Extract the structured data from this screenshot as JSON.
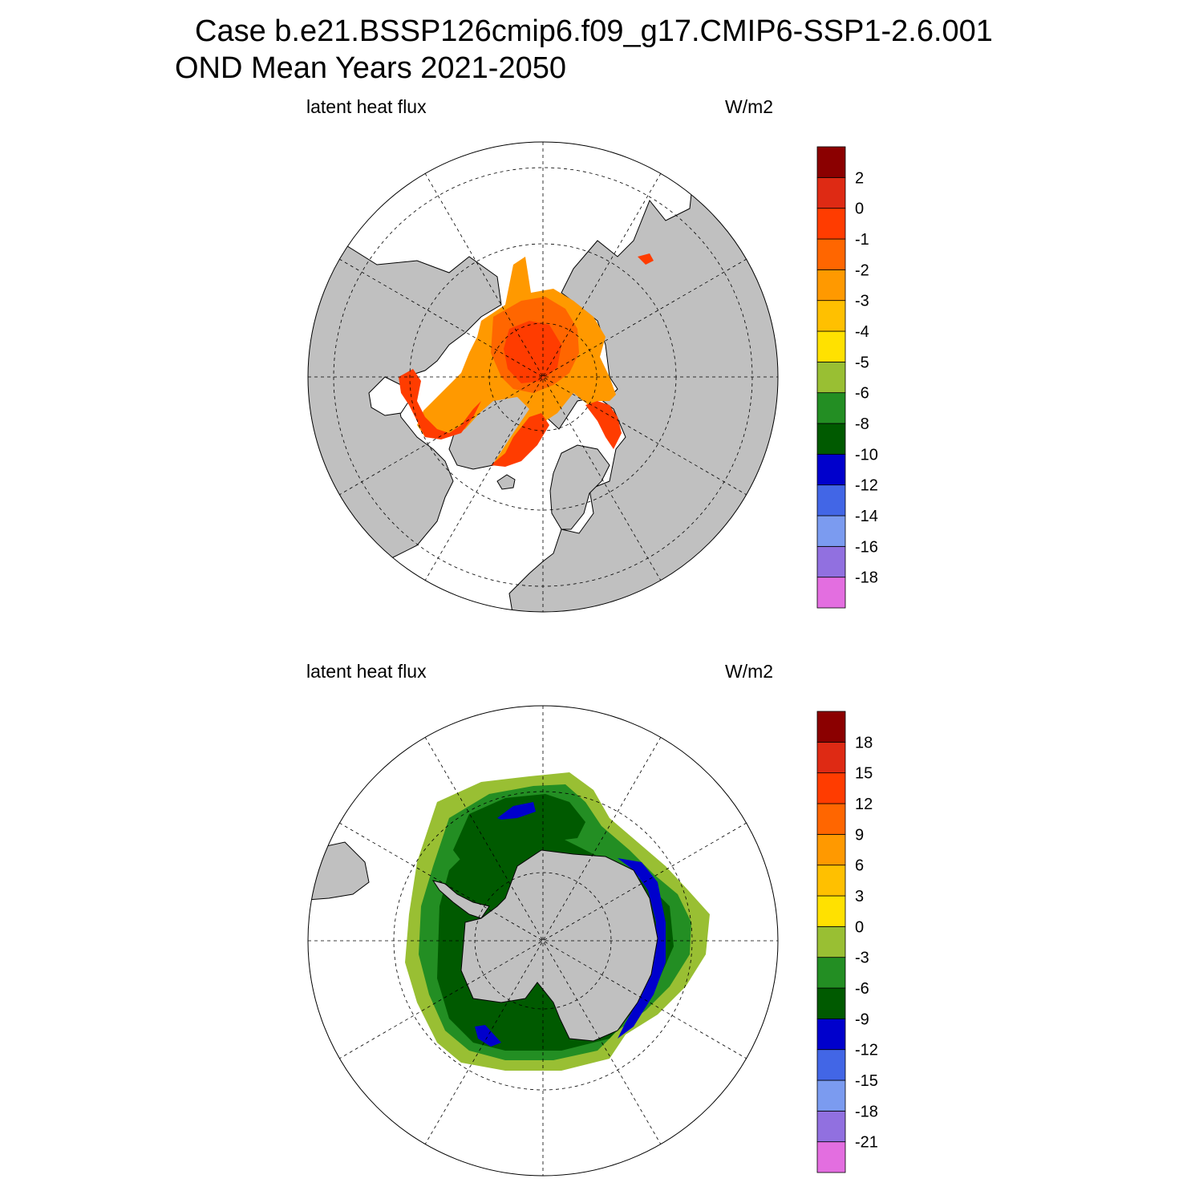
{
  "title": {
    "line1": "Case b.e21.BSSP126cmip6.f09_g17.CMIP6-SSP1-2.6.001",
    "line2": "OND Mean   Years 2021-2050"
  },
  "panels": [
    {
      "id": "arctic",
      "variable_label": "latent heat flux",
      "units_label": "W/m2",
      "projection": "north-polar-stereographic",
      "colorbar": {
        "colors": [
          "#e36ee0",
          "#9170e0",
          "#7b9bf0",
          "#4266e6",
          "#0000cc",
          "#005a00",
          "#238e23",
          "#99bf33",
          "#ffe100",
          "#ffc000",
          "#ff9900",
          "#ff6600",
          "#ff3c00",
          "#de2a14",
          "#8b0000"
        ],
        "labels": [
          "-18",
          "-16",
          "-14",
          "-12",
          "-10",
          "-8",
          "-6",
          "-5",
          "-4",
          "-3",
          "-2",
          "-1",
          "0",
          "2"
        ]
      }
    },
    {
      "id": "antarctic",
      "variable_label": "latent heat flux",
      "units_label": "W/m2",
      "projection": "south-polar-stereographic",
      "colorbar": {
        "colors": [
          "#e36ee0",
          "#9170e0",
          "#7b9bf0",
          "#4266e6",
          "#0000cc",
          "#005a00",
          "#238e23",
          "#99bf33",
          "#ffe100",
          "#ffc000",
          "#ff9900",
          "#ff6600",
          "#ff3c00",
          "#de2a14",
          "#8b0000"
        ],
        "labels": [
          "-21",
          "-18",
          "-15",
          "-12",
          "-9",
          "-6",
          "-3",
          "0",
          "3",
          "6",
          "9",
          "12",
          "15",
          "18"
        ]
      }
    }
  ],
  "colors": {
    "land": "#c0c0c0",
    "ocean": "#ffffff"
  }
}
